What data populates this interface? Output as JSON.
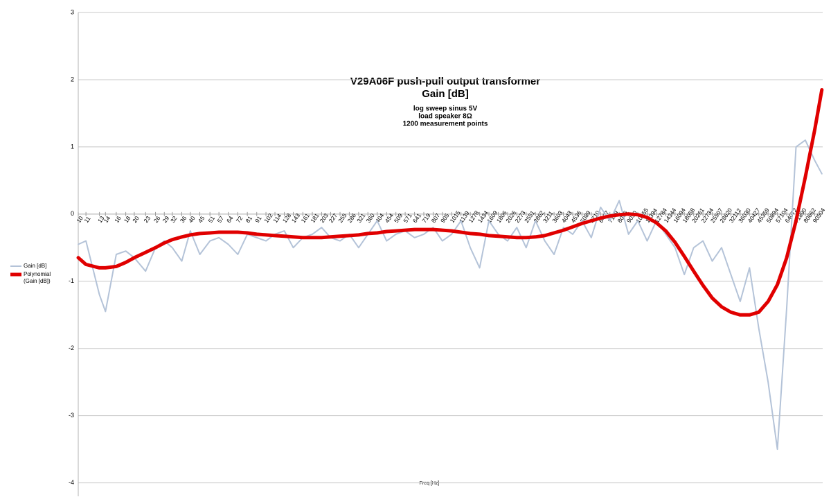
{
  "chart_data": {
    "type": "line",
    "title": "V29A06F push-pull output transformer",
    "subtitle": "Gain [dB]",
    "annotations": [
      "log sweep sinus 5V",
      "load speaker 8Ω",
      "1200 measurement points"
    ],
    "x_label": "Freq [Hz]",
    "x_scale": "log",
    "xlim": [
      10,
      100000
    ],
    "xticks": [
      10,
      11,
      13,
      14,
      16,
      18,
      20,
      23,
      26,
      29,
      32,
      36,
      40,
      45,
      51,
      57,
      64,
      72,
      81,
      91,
      102,
      114,
      128,
      143,
      161,
      181,
      203,
      227,
      255,
      286,
      321,
      360,
      404,
      454,
      509,
      571,
      641,
      719,
      807,
      905,
      1015,
      1139,
      1278,
      1434,
      1609,
      1806,
      2026,
      2273,
      2551,
      2862,
      3211,
      3603,
      4043,
      4536,
      5089,
      5710,
      6407,
      7189,
      8066,
      9050,
      10155,
      11394,
      12784,
      14344,
      16094,
      18058,
      20261,
      22734,
      25507,
      28620,
      32112,
      36030,
      40427,
      45359,
      50894,
      57104,
      64072,
      71890,
      80662,
      90504
    ],
    "ylim": [
      -4.2,
      3
    ],
    "yticks": [
      3,
      2,
      1,
      0,
      -1,
      -2,
      -3,
      -4
    ],
    "grid": true,
    "legend": "left",
    "x": [
      10,
      11,
      13,
      14,
      16,
      18,
      20,
      23,
      26,
      29,
      32,
      36,
      40,
      45,
      51,
      57,
      64,
      72,
      81,
      91,
      102,
      114,
      128,
      143,
      161,
      181,
      203,
      227,
      255,
      286,
      321,
      360,
      404,
      454,
      509,
      571,
      641,
      719,
      807,
      905,
      1015,
      1139,
      1278,
      1434,
      1609,
      1806,
      2026,
      2273,
      2551,
      2862,
      3211,
      3603,
      4043,
      4536,
      5089,
      5710,
      6407,
      7189,
      8066,
      9050,
      10155,
      11394,
      12784,
      14344,
      16094,
      18058,
      20261,
      22734,
      25507,
      28620,
      32112,
      36030,
      40427,
      45359,
      50894,
      57104,
      64072,
      71890,
      80662,
      90504,
      99000
    ],
    "series": [
      {
        "name": "Gain [dB]",
        "color": "#b4c3d8",
        "width": 2,
        "values": [
          -0.45,
          -0.4,
          -1.2,
          -1.45,
          -0.6,
          -0.55,
          -0.65,
          -0.85,
          -0.5,
          -0.4,
          -0.5,
          -0.7,
          -0.25,
          -0.6,
          -0.4,
          -0.35,
          -0.45,
          -0.6,
          -0.3,
          -0.35,
          -0.4,
          -0.3,
          -0.25,
          -0.5,
          -0.35,
          -0.3,
          -0.2,
          -0.35,
          -0.4,
          -0.3,
          -0.5,
          -0.3,
          -0.1,
          -0.4,
          -0.3,
          -0.25,
          -0.35,
          -0.3,
          -0.2,
          -0.4,
          -0.3,
          -0.1,
          -0.5,
          -0.8,
          -0.1,
          -0.3,
          -0.4,
          -0.2,
          -0.5,
          -0.1,
          -0.4,
          -0.6,
          -0.2,
          -0.3,
          -0.1,
          -0.35,
          0.1,
          -0.1,
          0.2,
          -0.3,
          -0.1,
          -0.4,
          -0.1,
          -0.3,
          -0.5,
          -0.9,
          -0.5,
          -0.4,
          -0.7,
          -0.5,
          -0.9,
          -1.3,
          -0.8,
          -1.7,
          -2.5,
          -3.5,
          -1.4,
          1.0,
          1.1,
          0.8,
          0.6
        ]
      },
      {
        "name": "Polynomial (Gain [dB])",
        "color": "#e00000",
        "width": 5,
        "values": [
          -0.65,
          -0.75,
          -0.8,
          -0.8,
          -0.78,
          -0.72,
          -0.65,
          -0.57,
          -0.5,
          -0.43,
          -0.38,
          -0.34,
          -0.31,
          -0.29,
          -0.28,
          -0.27,
          -0.27,
          -0.27,
          -0.28,
          -0.3,
          -0.31,
          -0.32,
          -0.33,
          -0.34,
          -0.35,
          -0.35,
          -0.35,
          -0.34,
          -0.33,
          -0.32,
          -0.31,
          -0.29,
          -0.28,
          -0.26,
          -0.25,
          -0.24,
          -0.23,
          -0.23,
          -0.23,
          -0.24,
          -0.25,
          -0.27,
          -0.29,
          -0.3,
          -0.32,
          -0.33,
          -0.34,
          -0.35,
          -0.35,
          -0.34,
          -0.32,
          -0.28,
          -0.24,
          -0.19,
          -0.14,
          -0.1,
          -0.06,
          -0.03,
          -0.01,
          0,
          -0.01,
          -0.05,
          -0.13,
          -0.25,
          -0.42,
          -0.63,
          -0.85,
          -1.06,
          -1.25,
          -1.38,
          -1.46,
          -1.5,
          -1.5,
          -1.46,
          -1.3,
          -1.05,
          -0.65,
          -0.1,
          0.55,
          1.25,
          1.85
        ]
      }
    ]
  }
}
